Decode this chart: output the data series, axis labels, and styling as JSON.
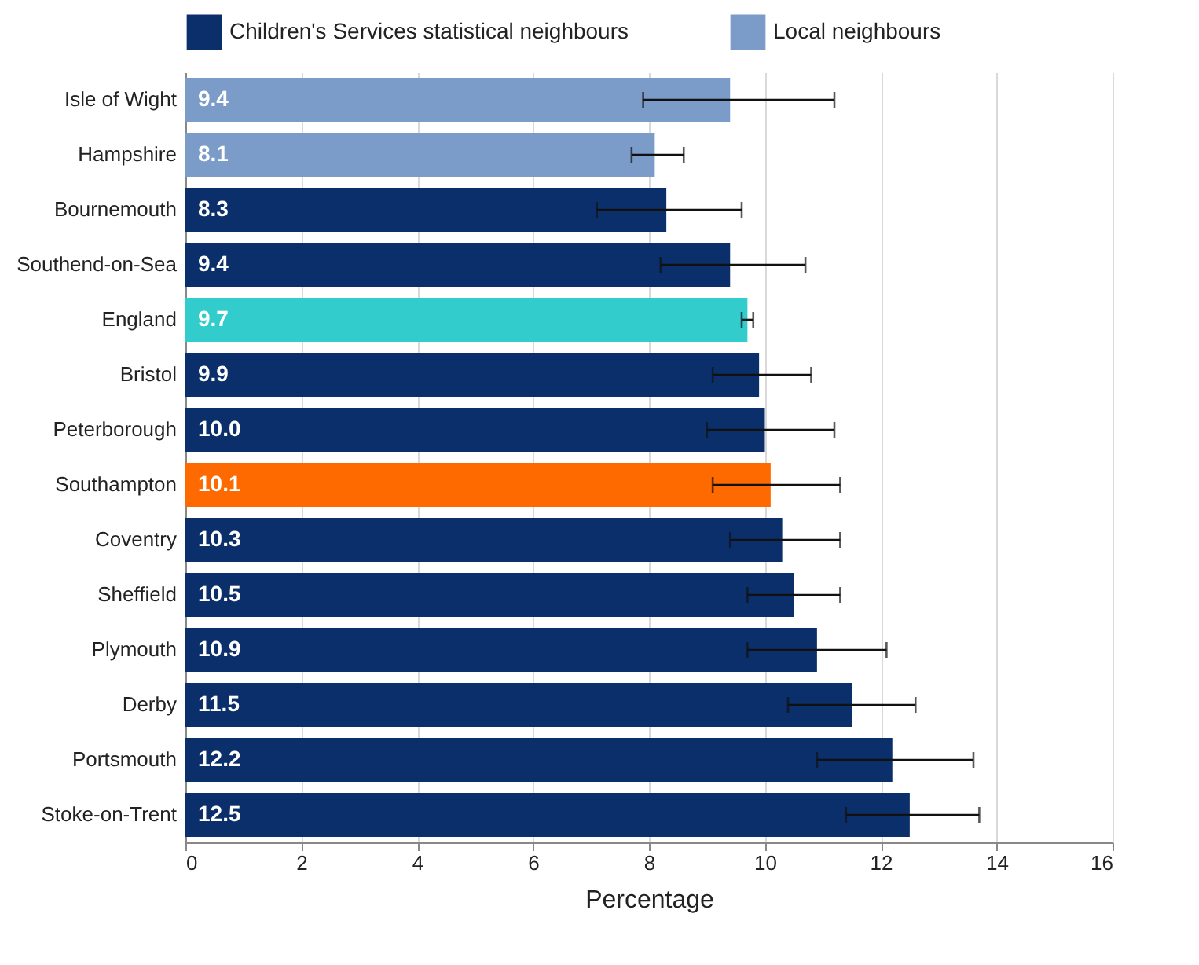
{
  "chart_data": {
    "type": "bar",
    "orientation": "horizontal",
    "xlabel": "Percentage",
    "categories": [
      "Isle of Wight",
      "Hampshire",
      "Bournemouth",
      "Southend-on-Sea",
      "England",
      "Bristol",
      "Peterborough",
      "Southampton",
      "Coventry",
      "Sheffield",
      "Plymouth",
      "Derby",
      "Portsmouth",
      "Stoke-on-Trent"
    ],
    "series": [
      {
        "name": "Children's  Services statistical neighbours",
        "color": "#0b2f6b",
        "values": [
          null,
          null,
          8.3,
          9.4,
          null,
          9.9,
          10.0,
          null,
          10.3,
          10.5,
          10.9,
          11.5,
          12.2,
          12.5
        ],
        "value_labels": [
          null,
          null,
          "8.3",
          "9.4",
          null,
          "9.9",
          "10.0",
          null,
          "10.3",
          "10.5",
          "10.9",
          "11.5",
          "12.2",
          "12.5"
        ],
        "errors": [
          null,
          null,
          [
            7.1,
            9.6
          ],
          [
            8.2,
            10.7
          ],
          null,
          [
            9.1,
            10.8
          ],
          [
            9.0,
            11.2
          ],
          null,
          [
            9.4,
            11.3
          ],
          [
            9.7,
            11.3
          ],
          [
            9.7,
            12.1
          ],
          [
            10.4,
            12.6
          ],
          [
            10.9,
            13.6
          ],
          [
            11.4,
            13.7
          ]
        ]
      },
      {
        "name": "Local neighbours",
        "color": "#7b9cc8",
        "values": [
          9.4,
          8.1,
          null,
          null,
          null,
          null,
          null,
          null,
          null,
          null,
          null,
          null,
          null,
          null
        ],
        "value_labels": [
          "9.4",
          "8.1",
          null,
          null,
          null,
          null,
          null,
          null,
          null,
          null,
          null,
          null,
          null,
          null
        ],
        "errors": [
          [
            7.9,
            11.2
          ],
          [
            7.7,
            8.6
          ],
          null,
          null,
          null,
          null,
          null,
          null,
          null,
          null,
          null,
          null,
          null,
          null
        ]
      },
      {
        "color": "#33cccc",
        "values": [
          null,
          null,
          null,
          null,
          9.7,
          null,
          null,
          null,
          null,
          null,
          null,
          null,
          null,
          null
        ],
        "value_labels": [
          null,
          null,
          null,
          null,
          "9.7",
          null,
          null,
          null,
          null,
          null,
          null,
          null,
          null,
          null
        ],
        "errors": [
          null,
          null,
          null,
          null,
          [
            9.6,
            9.8
          ],
          null,
          null,
          null,
          null,
          null,
          null,
          null,
          null,
          null
        ]
      },
      {
        "color": "#ff6a00",
        "values": [
          null,
          null,
          null,
          null,
          null,
          null,
          null,
          10.1,
          null,
          null,
          null,
          null,
          null,
          null
        ],
        "value_labels": [
          null,
          null,
          null,
          null,
          null,
          null,
          null,
          "10.1",
          null,
          null,
          null,
          null,
          null,
          null
        ],
        "errors": [
          null,
          null,
          null,
          null,
          null,
          null,
          null,
          [
            9.1,
            11.3
          ],
          null,
          null,
          null,
          null,
          null,
          null
        ]
      }
    ],
    "xlim": [
      0,
      16
    ],
    "xticks": [
      0,
      2,
      4,
      6,
      8,
      10,
      12,
      14,
      16
    ],
    "grid": "x",
    "legend": "top"
  }
}
